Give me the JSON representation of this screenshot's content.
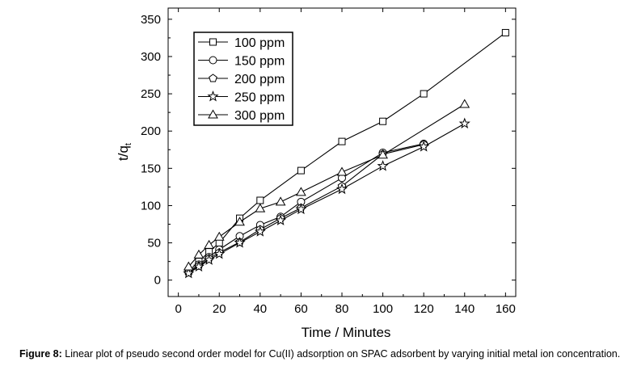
{
  "caption": {
    "label": "Figure 8:",
    "text": " Linear plot of pseudo second order model for Cu(II) adsorption on SPAC adsorbent by varying initial metal ion concentration."
  },
  "chart_data": {
    "type": "line",
    "xlabel": "Time / Minutes",
    "ylabel_main": "t/q",
    "ylabel_sub": "t",
    "xlim": [
      -5,
      165
    ],
    "ylim": [
      -22,
      365
    ],
    "xticks": [
      0,
      20,
      40,
      60,
      80,
      100,
      120,
      140,
      160
    ],
    "yticks": [
      0,
      50,
      100,
      150,
      200,
      250,
      300,
      350
    ],
    "grid": false,
    "legend_position": "top-left",
    "series": [
      {
        "name": "100 ppm",
        "marker": "square",
        "x": [
          5,
          10,
          15,
          20,
          30,
          40,
          60,
          80,
          100,
          120,
          160
        ],
        "y": [
          12,
          25,
          38,
          50,
          83,
          107,
          147,
          186,
          213,
          250,
          332
        ]
      },
      {
        "name": "150 ppm",
        "marker": "circle",
        "x": [
          5,
          10,
          15,
          20,
          30,
          40,
          50,
          60,
          80,
          100,
          120
        ],
        "y": [
          11,
          21,
          31,
          41,
          59,
          74,
          85,
          105,
          137,
          171,
          183
        ]
      },
      {
        "name": "200 ppm",
        "marker": "pentagon",
        "x": [
          5,
          10,
          15,
          20,
          30,
          40,
          50,
          60,
          80,
          100,
          120
        ],
        "y": [
          10,
          19,
          29,
          37,
          51,
          68,
          83,
          97,
          126,
          169,
          182
        ]
      },
      {
        "name": "250 ppm",
        "marker": "star",
        "x": [
          5,
          10,
          15,
          20,
          30,
          40,
          50,
          60,
          80,
          100,
          120,
          140
        ],
        "y": [
          9,
          18,
          27,
          35,
          50,
          65,
          80,
          95,
          122,
          153,
          179,
          210
        ]
      },
      {
        "name": "300 ppm",
        "marker": "triangle",
        "x": [
          5,
          10,
          15,
          20,
          30,
          40,
          50,
          60,
          80,
          100,
          140
        ],
        "y": [
          18,
          34,
          47,
          58,
          78,
          96,
          105,
          118,
          145,
          168,
          236
        ]
      }
    ]
  }
}
